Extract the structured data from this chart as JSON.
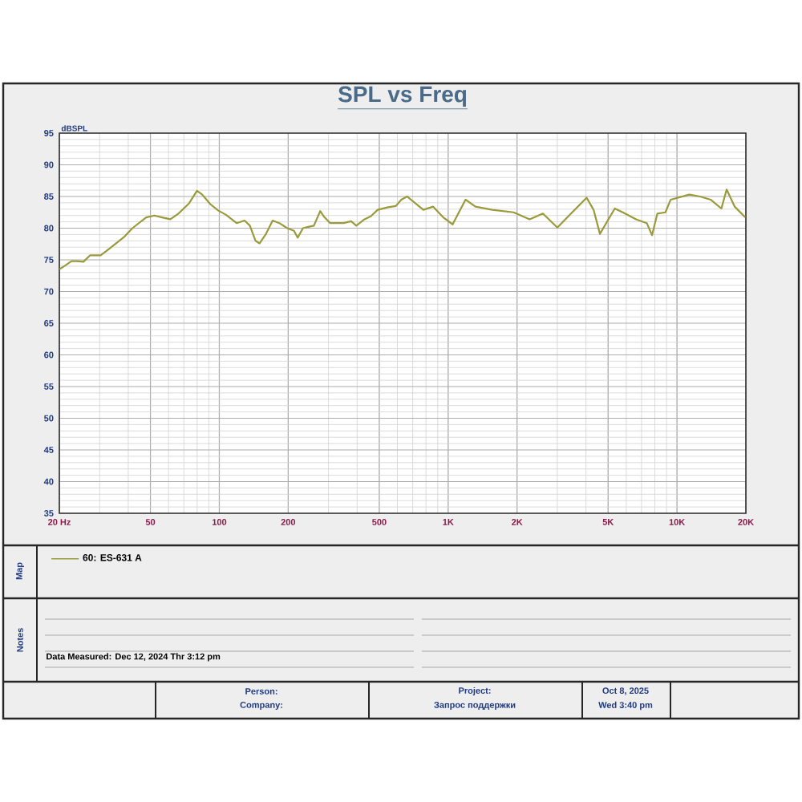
{
  "chart_data": {
    "type": "line",
    "title": "SPL vs Freq",
    "ylabel": "dBSPL",
    "log": "x",
    "xlim": [
      20,
      20000
    ],
    "ylim": [
      35,
      95
    ],
    "xticks": [
      {
        "value": 20,
        "label": "20  Hz"
      },
      50,
      100,
      200,
      500,
      {
        "value": 1000,
        "label": "1K"
      },
      {
        "value": 2000,
        "label": "2K"
      },
      {
        "value": 5000,
        "label": "5K"
      },
      {
        "value": 10000,
        "label": "10K"
      },
      {
        "value": 20000,
        "label": "20K"
      }
    ],
    "yticks": [
      35,
      40,
      45,
      50,
      55,
      60,
      65,
      70,
      75,
      80,
      85,
      90,
      95
    ],
    "grid": true,
    "legend": "bottom",
    "marker": "none",
    "line_style": "solid",
    "series": [
      {
        "name": "60: ES-631 A",
        "color": "#9a9a3a",
        "x": [
          20,
          21.2,
          22.6,
          23.8,
          25.5,
          27.2,
          30.3,
          32.9,
          38.6,
          41.7,
          47.9,
          52,
          56.3,
          61.1,
          66.3,
          73.7,
          79.9,
          84.2,
          91.3,
          98.8,
          107,
          119,
          129,
          136,
          144,
          150,
          160,
          171,
          183,
          198,
          212,
          220,
          232,
          245,
          259,
          276,
          287,
          305,
          349,
          377,
          397,
          431,
          460,
          492,
          547,
          591,
          624,
          662,
          779,
          860,
          952,
          1046,
          1191,
          1316,
          1560,
          1932,
          2270,
          2594,
          3000,
          3484,
          4028,
          4320,
          4605,
          5348,
          5794,
          6628,
          7380,
          7780,
          8210,
          8900,
          9380,
          11320,
          12600,
          14030,
          15630,
          16480,
          17870,
          19870
        ],
        "values": [
          73.5,
          74.1,
          74.8,
          74.8,
          74.7,
          75.7,
          75.7,
          76.7,
          78.7,
          80,
          81.7,
          82,
          81.7,
          81.4,
          82.3,
          83.9,
          85.9,
          85.3,
          83.8,
          82.8,
          82.1,
          80.8,
          81.2,
          80.4,
          78,
          77.6,
          79.1,
          81.2,
          80.8,
          80,
          79.6,
          78.5,
          80,
          80.2,
          80.4,
          82.7,
          81.8,
          80.8,
          80.8,
          81.1,
          80.4,
          81.4,
          81.9,
          82.9,
          83.3,
          83.5,
          84.5,
          85,
          82.9,
          83.4,
          81.7,
          80.6,
          84.5,
          83.4,
          82.9,
          82.5,
          81.4,
          82.3,
          80.1,
          82.5,
          84.8,
          82.9,
          79.1,
          83.1,
          82.5,
          81.4,
          80.8,
          78.9,
          82.3,
          82.5,
          84.5,
          85.3,
          85,
          84.5,
          83.1,
          86.1,
          83.4,
          81.7
        ]
      }
    ],
    "annotations": [
      "Map",
      "Notes",
      "Data Measured: Dec 12, 2024  Thr  3:12 pm",
      "Person:",
      "Company:",
      "Project:",
      "Запрос поддержки",
      "Oct  8, 2025",
      "Wed  3:40 pm"
    ]
  }
}
